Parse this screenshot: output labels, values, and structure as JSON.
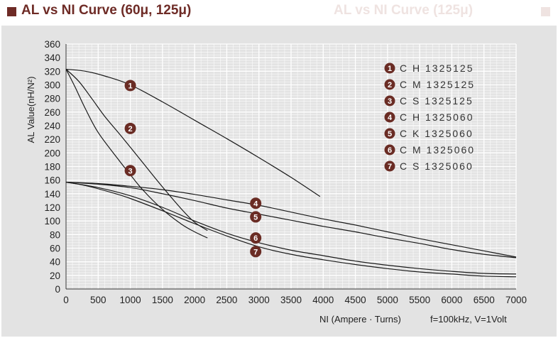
{
  "header": {
    "title": "AL vs NI Curve (60μ, 125μ)",
    "ghost_text": "AL vs NI Curve (125μ)"
  },
  "colors": {
    "title": "#6e2b26",
    "badge": "#6a2c24",
    "panel": "#e3e3e3",
    "grid": "#ffffff",
    "curve": "#1a1a1a"
  },
  "chart_data": {
    "type": "line",
    "xlabel": "NI (Ampere · Turns)",
    "ylabel": "AL Value(nH/N²)",
    "note": "f=100kHz, V=1Volt",
    "xlim": [
      0,
      7000
    ],
    "ylim": [
      0,
      360
    ],
    "x_ticks": [
      0,
      500,
      1000,
      1500,
      2000,
      2500,
      3000,
      3500,
      4000,
      4500,
      5000,
      5500,
      6000,
      6500,
      7000
    ],
    "y_ticks": [
      0,
      20,
      40,
      60,
      80,
      100,
      120,
      140,
      160,
      180,
      200,
      220,
      240,
      260,
      280,
      300,
      320,
      340,
      360
    ],
    "grid": true,
    "legend": "top-right",
    "series": [
      {
        "marker": "1",
        "name": "C H 1325125",
        "points": [
          [
            0,
            323
          ],
          [
            300,
            320
          ],
          [
            600,
            313
          ],
          [
            1000,
            300
          ],
          [
            1500,
            275
          ],
          [
            2000,
            248
          ],
          [
            2500,
            221
          ],
          [
            3000,
            193
          ],
          [
            3500,
            164
          ],
          [
            3950,
            136
          ]
        ],
        "label_at": [
          1000,
          299
        ]
      },
      {
        "marker": "2",
        "name": "C M 1325125",
        "points": [
          [
            0,
            323
          ],
          [
            200,
            305
          ],
          [
            400,
            280
          ],
          [
            600,
            254
          ],
          [
            900,
            220
          ],
          [
            1200,
            185
          ],
          [
            1500,
            150
          ],
          [
            1800,
            117
          ],
          [
            2000,
            98
          ],
          [
            2200,
            86
          ]
        ],
        "label_at": [
          1000,
          236
        ]
      },
      {
        "marker": "3",
        "name": "C S 1325125",
        "points": [
          [
            0,
            323
          ],
          [
            150,
            295
          ],
          [
            300,
            265
          ],
          [
            500,
            230
          ],
          [
            800,
            192
          ],
          [
            1000,
            168
          ],
          [
            1200,
            145
          ],
          [
            1500,
            117
          ],
          [
            1800,
            95
          ],
          [
            2000,
            84
          ],
          [
            2200,
            75
          ]
        ],
        "label_at": [
          1000,
          174
        ]
      },
      {
        "marker": "4",
        "name": "C H 1325060",
        "points": [
          [
            0,
            157
          ],
          [
            500,
            155
          ],
          [
            1000,
            151
          ],
          [
            1500,
            146
          ],
          [
            2000,
            139
          ],
          [
            2500,
            131
          ],
          [
            3000,
            123
          ],
          [
            3500,
            113
          ],
          [
            4000,
            103
          ],
          [
            4500,
            94
          ],
          [
            5000,
            84
          ],
          [
            5500,
            74
          ],
          [
            6000,
            65
          ],
          [
            6500,
            56
          ],
          [
            7000,
            47
          ]
        ],
        "label_at": [
          2950,
          126
        ]
      },
      {
        "marker": "5",
        "name": "C K 1325060",
        "points": [
          [
            0,
            157
          ],
          [
            500,
            154
          ],
          [
            1000,
            149
          ],
          [
            1500,
            140
          ],
          [
            2000,
            130
          ],
          [
            2500,
            119
          ],
          [
            3000,
            110
          ],
          [
            3500,
            101
          ],
          [
            4000,
            92
          ],
          [
            4500,
            84
          ],
          [
            5000,
            75
          ],
          [
            5500,
            67
          ],
          [
            6000,
            58
          ],
          [
            6500,
            51
          ],
          [
            7000,
            46
          ]
        ],
        "label_at": [
          2950,
          106
        ]
      },
      {
        "marker": "6",
        "name": "C M 1325060",
        "points": [
          [
            0,
            157
          ],
          [
            500,
            149
          ],
          [
            1000,
            137
          ],
          [
            1500,
            120
          ],
          [
            2000,
            100
          ],
          [
            2500,
            82
          ],
          [
            3000,
            68
          ],
          [
            3500,
            57
          ],
          [
            4000,
            49
          ],
          [
            4500,
            41
          ],
          [
            5000,
            35
          ],
          [
            5500,
            30
          ],
          [
            6000,
            26
          ],
          [
            6500,
            23
          ],
          [
            7000,
            22
          ]
        ],
        "label_at": [
          2950,
          75
        ]
      },
      {
        "marker": "7",
        "name": "C S 1325060",
        "points": [
          [
            0,
            157
          ],
          [
            300,
            152
          ],
          [
            700,
            142
          ],
          [
            1000,
            133
          ],
          [
            1500,
            115
          ],
          [
            2000,
            96
          ],
          [
            2500,
            78
          ],
          [
            3000,
            62
          ],
          [
            3500,
            51
          ],
          [
            4000,
            43
          ],
          [
            4500,
            36
          ],
          [
            5000,
            30
          ],
          [
            5500,
            25
          ],
          [
            6000,
            22
          ],
          [
            6500,
            19
          ],
          [
            7000,
            18
          ]
        ],
        "label_at": [
          2950,
          55
        ]
      }
    ]
  }
}
